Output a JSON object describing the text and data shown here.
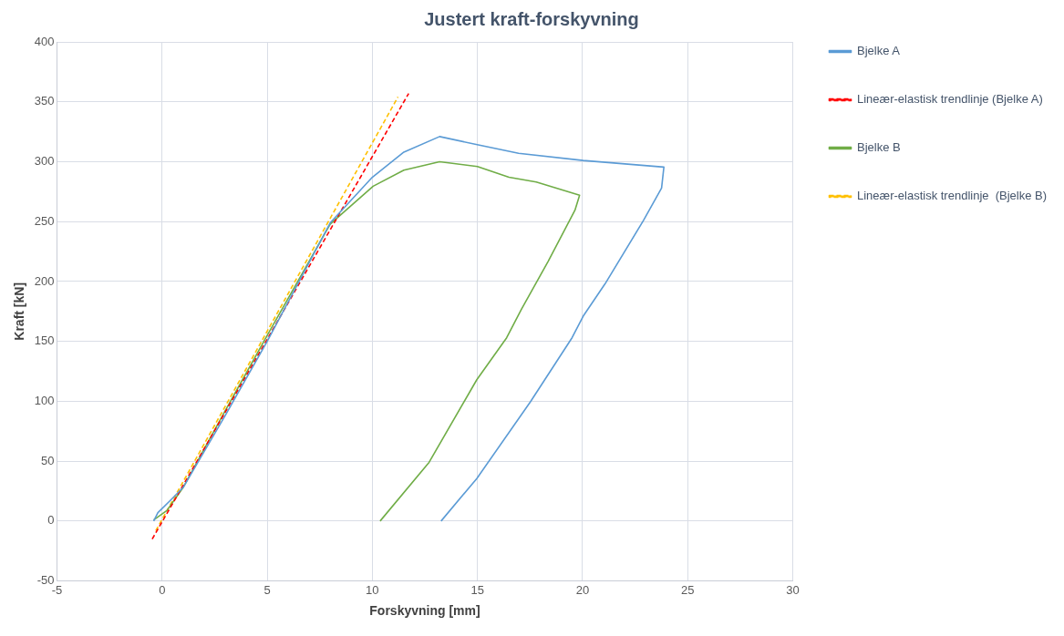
{
  "chart_data": {
    "type": "line",
    "title": "Justert kraft-forskyvning",
    "xlabel": "Forskyvning [mm]",
    "ylabel": "Kraft [kN]",
    "xlim": [
      -5,
      30
    ],
    "xticks": [
      -5,
      0,
      5,
      10,
      15,
      20,
      25,
      30
    ],
    "ylim": [
      -50,
      400
    ],
    "yticks": [
      -50,
      0,
      50,
      100,
      150,
      200,
      250,
      300,
      350,
      400
    ],
    "grid": true,
    "legend": "right",
    "marker": "none",
    "series": [
      {
        "name": "Bjelke A",
        "color": "#5b9bd5",
        "line_style": "solid",
        "x": [
          -0.4,
          -0.2,
          0.38,
          1,
          2,
          3,
          5,
          8,
          10,
          11.5,
          13.2,
          15.04,
          16.96,
          20.03,
          23.87,
          23.76,
          22.9,
          21.07,
          20.03,
          19.5,
          17.52,
          14.97,
          13.27
        ],
        "values": [
          0,
          7,
          17,
          28,
          58,
          88,
          150,
          249,
          287,
          308,
          321,
          314,
          307,
          301,
          295.5,
          278,
          251,
          198,
          171,
          153,
          99.5,
          35.5,
          0
        ]
      },
      {
        "name": "Lineær-elastisk trendlinje (Bjelke A)",
        "color": "#ff0000",
        "line_style": "dashed",
        "x": [
          -0.47,
          11.73
        ],
        "values": [
          -15,
          357
        ]
      },
      {
        "name": "Bjelke B",
        "color": "#70ad47",
        "line_style": "solid",
        "x": [
          -0.4,
          0.24,
          1,
          2,
          3,
          5,
          8,
          10.04,
          11.5,
          13.2,
          15,
          16.5,
          17.8,
          19.86,
          19.64,
          18.37,
          17.1,
          16.39,
          14.97,
          12.7,
          10.37
        ],
        "values": [
          1,
          9,
          28,
          60,
          92,
          155,
          248,
          279.5,
          293,
          300,
          296,
          287,
          283,
          272,
          259.5,
          217,
          177,
          153,
          118,
          49,
          0
        ]
      },
      {
        "name": "Lineær-elastisk trendlinje  (Bjelke B)",
        "color": "#ffc000",
        "line_style": "dashed",
        "x": [
          -0.3,
          11.22
        ],
        "values": [
          -8,
          354
        ]
      }
    ]
  }
}
